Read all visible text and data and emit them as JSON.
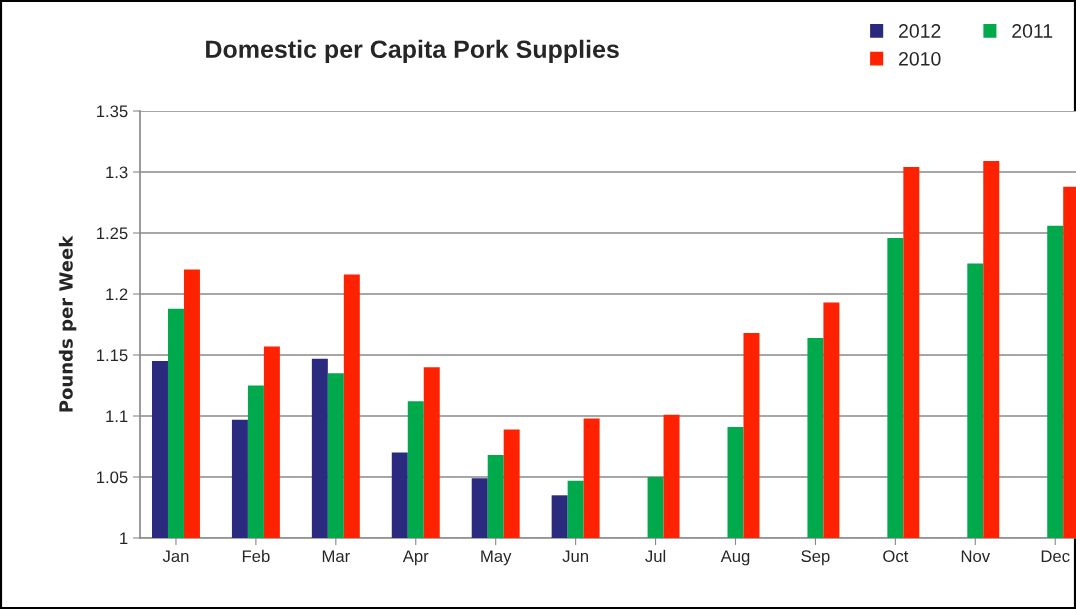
{
  "chart_data": {
    "type": "bar",
    "title": "Domestic per Capita Pork Supplies",
    "ylabel": "Pounds per Week",
    "categories": [
      "Jan",
      "Feb",
      "Mar",
      "Apr",
      "May",
      "Jun",
      "Jul",
      "Aug",
      "Sep",
      "Oct",
      "Nov",
      "Dec"
    ],
    "series": [
      {
        "name": "2012",
        "color": "#2a2a7e",
        "values": [
          1.145,
          1.097,
          1.147,
          1.07,
          1.049,
          1.035,
          null,
          null,
          null,
          null,
          null,
          null
        ]
      },
      {
        "name": "2011",
        "color": "#00aa4c",
        "values": [
          1.188,
          1.125,
          1.135,
          1.112,
          1.068,
          1.047,
          1.05,
          1.091,
          1.164,
          1.246,
          1.225,
          1.256
        ]
      },
      {
        "name": "2010",
        "color": "#ff2200",
        "values": [
          1.22,
          1.157,
          1.216,
          1.14,
          1.089,
          1.098,
          1.101,
          1.168,
          1.193,
          1.304,
          1.309,
          1.288
        ]
      }
    ],
    "ylim": [
      1,
      1.35
    ],
    "yticks": [
      1,
      1.05,
      1.1,
      1.15,
      1.2,
      1.25,
      1.3,
      1.35
    ],
    "grid": "y",
    "legend": "top right"
  }
}
